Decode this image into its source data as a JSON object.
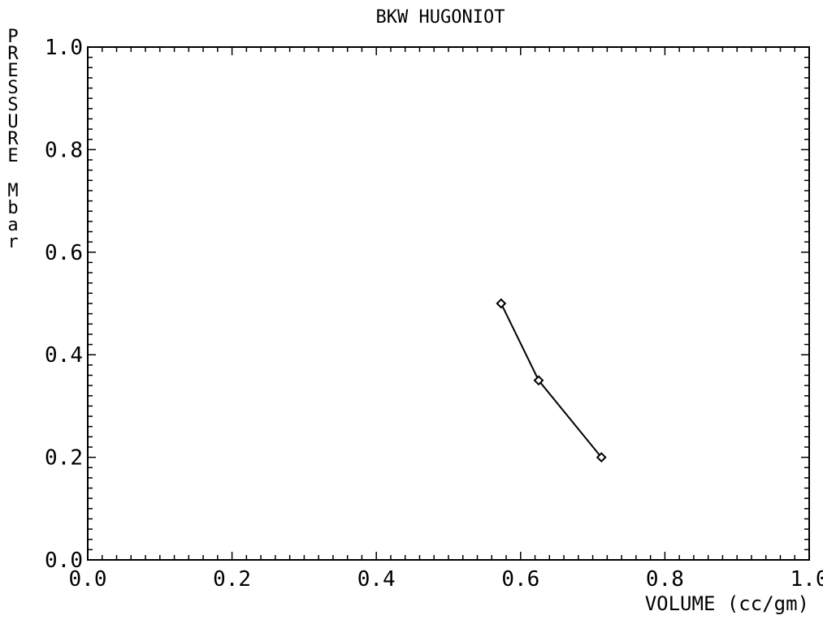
{
  "chart_data": {
    "type": "line",
    "title": "BKW HUGONIOT",
    "xlabel": "VOLUME (cc/gm)",
    "ylabel": "PRESSURE Mbar",
    "xlim": [
      0.0,
      1.0
    ],
    "ylim": [
      0.0,
      1.0
    ],
    "x_ticks": [
      "0.0",
      "0.2",
      "0.4",
      "0.6",
      "0.8",
      "1.0"
    ],
    "y_ticks": [
      "0.0",
      "0.2",
      "0.4",
      "0.6",
      "0.8",
      "1.0"
    ],
    "grid": false,
    "series": [
      {
        "x": [
          0.573,
          0.625,
          0.712
        ],
        "y": [
          0.5,
          0.35,
          0.2
        ],
        "marker": "diamond",
        "color": "#000000"
      }
    ]
  }
}
